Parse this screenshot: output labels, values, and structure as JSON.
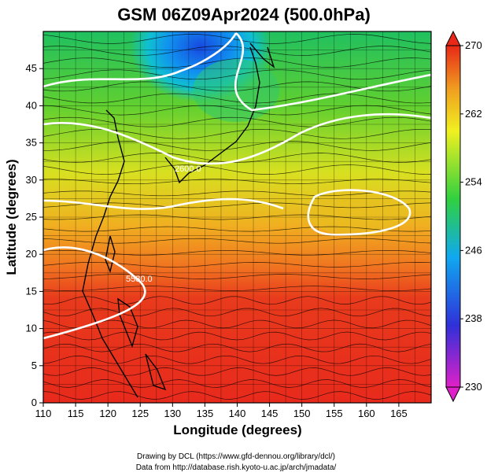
{
  "figure": {
    "title": "GSM 06Z09Apr2024 (500.0hPa)",
    "credit_line_1": "Drawing by DCL (https://www.gfd-dennou.org/library/dcl/)",
    "credit_line_2": "Data from http://database.rish.kyoto-u.ac.jp/arch/jmadata/"
  },
  "chart_data": {
    "type": "heatmap",
    "title": "GSM 06Z09Apr2024 (500.0hPa)",
    "xlabel": "Longitude (degrees)",
    "ylabel": "Latitude (degrees)",
    "xlim": [
      110,
      170
    ],
    "ylim": [
      0,
      50
    ],
    "x_ticks": [
      110,
      115,
      120,
      125,
      130,
      135,
      140,
      145,
      150,
      155,
      160,
      165
    ],
    "y_ticks": [
      0,
      5,
      10,
      15,
      20,
      25,
      30,
      35,
      40,
      45
    ],
    "grid": true,
    "colorbar": {
      "ticks": [
        230,
        238,
        246,
        254,
        262,
        270
      ],
      "range": [
        230,
        270
      ],
      "colors": [
        "#e020c8",
        "#3030d8",
        "#10a8f0",
        "#30d040",
        "#f0f020",
        "#f0a020",
        "#e82818"
      ],
      "placement": "right"
    },
    "field_description_colors": {
      "warm": "#e82a1c",
      "cold": "#2050e0",
      "contour_line": "#ffffff",
      "streamline": "#000000"
    },
    "temperature_bands": [
      {
        "lat": 47,
        "value": 251
      },
      {
        "lat": 42,
        "value": 253
      },
      {
        "lat": 37,
        "value": 256
      },
      {
        "lat": 32,
        "value": 259
      },
      {
        "lat": 27,
        "value": 262
      },
      {
        "lat": 22,
        "value": 265
      },
      {
        "lat": 17,
        "value": 267
      },
      {
        "lat": 12,
        "value": 268
      },
      {
        "lat": 7,
        "value": 268
      },
      {
        "lat": 2,
        "value": 268
      }
    ],
    "cold_pool": {
      "lon": 136,
      "lat": 47,
      "value": 240
    },
    "contour_labels": [
      {
        "text": "2600.0",
        "lon": 132,
        "lat": 35.5
      },
      {
        "text": "5580.0",
        "lon": 122,
        "lat": 18
      }
    ]
  }
}
